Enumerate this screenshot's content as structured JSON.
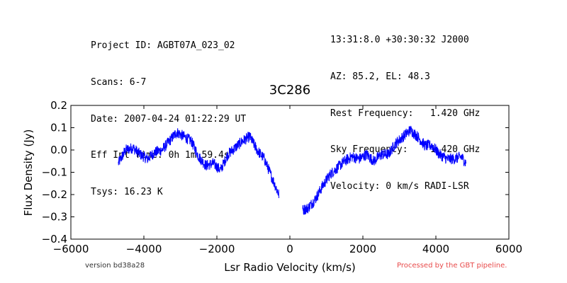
{
  "header": {
    "left_lines": [
      "Project ID: AGBT07A_023_02",
      "Scans: 6-7",
      "Date: 2007-04-24 01:22:29 UT",
      "Eff Int Time: 0h 1m 59.4s",
      "Tsys: 16.23 K"
    ],
    "right_lines": [
      "13:31:8.0 +30:30:32 J2000",
      "AZ: 85.2, EL: 48.3",
      "Rest Frequency:   1.420 GHz",
      "Sky Frequency:    1.420 GHz",
      "Velocity: 0 km/s RADI-LSR"
    ]
  },
  "footer": {
    "version": "version bd38a28",
    "processed": "Processed by the GBT pipeline.",
    "processed_color": "#e84a4a"
  },
  "chart_data": {
    "type": "line",
    "title": "3C286",
    "xlabel": "Lsr Radio Velocity (km/s)",
    "ylabel": "Flux Density (Jy)",
    "xlim": [
      -6000,
      6000
    ],
    "ylim": [
      -0.4,
      0.2
    ],
    "xticks": [
      -6000,
      -4000,
      -2000,
      0,
      2000,
      4000,
      6000
    ],
    "xtick_labels": [
      "−6000",
      "−4000",
      "−2000",
      "0",
      "2000",
      "4000",
      "6000"
    ],
    "yticks": [
      0.2,
      0.1,
      0.0,
      -0.1,
      -0.2,
      -0.3,
      -0.4
    ],
    "ytick_labels": [
      "0.2",
      "0.1",
      "0.0",
      "−0.1",
      "−0.2",
      "−0.3",
      "−0.4"
    ],
    "grid": false,
    "color": "#0000ff",
    "noise_amplitude": 0.025,
    "series": [
      {
        "x": [
          -4700,
          -4500,
          -4300,
          -4100,
          -3900,
          -3700,
          -3500,
          -3300,
          -3100,
          -2900,
          -2700,
          -2500,
          -2300,
          -2100,
          -1900,
          -1700,
          -1500,
          -1300,
          -1100,
          -900,
          -700,
          -500,
          -300
        ],
        "y": [
          -0.06,
          0.0,
          0.01,
          -0.02,
          -0.04,
          -0.01,
          0.0,
          0.04,
          0.08,
          0.06,
          0.04,
          -0.03,
          -0.07,
          -0.06,
          -0.09,
          -0.02,
          0.01,
          0.04,
          0.06,
          0.0,
          -0.04,
          -0.12,
          -0.2
        ]
      },
      {
        "x": [
          350,
          500,
          700,
          900,
          1100,
          1300,
          1500,
          1700,
          1900,
          2100,
          2300,
          2500,
          2700,
          2900,
          3100,
          3300,
          3500,
          3700,
          3900,
          4100,
          4300,
          4500,
          4700,
          4830
        ],
        "y": [
          -0.27,
          -0.26,
          -0.22,
          -0.16,
          -0.11,
          -0.08,
          -0.05,
          -0.03,
          -0.04,
          -0.02,
          -0.05,
          -0.02,
          -0.02,
          0.03,
          0.06,
          0.09,
          0.06,
          0.02,
          0.02,
          -0.02,
          -0.04,
          -0.04,
          -0.03,
          -0.06
        ]
      }
    ]
  }
}
